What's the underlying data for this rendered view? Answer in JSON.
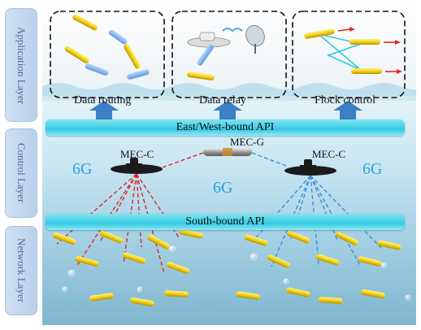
{
  "layers": {
    "application": "Application Layer",
    "control": "Control Layer",
    "network": "Network Layer"
  },
  "apps": {
    "routing": "Data routing",
    "relay": "Data relay",
    "flock": "Flock control"
  },
  "apis": {
    "east_west": "East/West-bound  API",
    "south": "South-bound  API"
  },
  "nodes": {
    "mec_c_left": "MEC-C",
    "mec_g": "MEC-G",
    "mec_c_right": "MEC-C"
  },
  "network_labels": {
    "g_left": "6G",
    "g_center": "6G",
    "g_right": "6G"
  },
  "colors": {
    "link_left": "#e0282a",
    "link_right": "#3b8fe0",
    "auv_body": "#f3d21a",
    "arrow": "#3d7fc4",
    "flock_link": "#2ec8e6",
    "flock_arrow": "#e0262a"
  }
}
